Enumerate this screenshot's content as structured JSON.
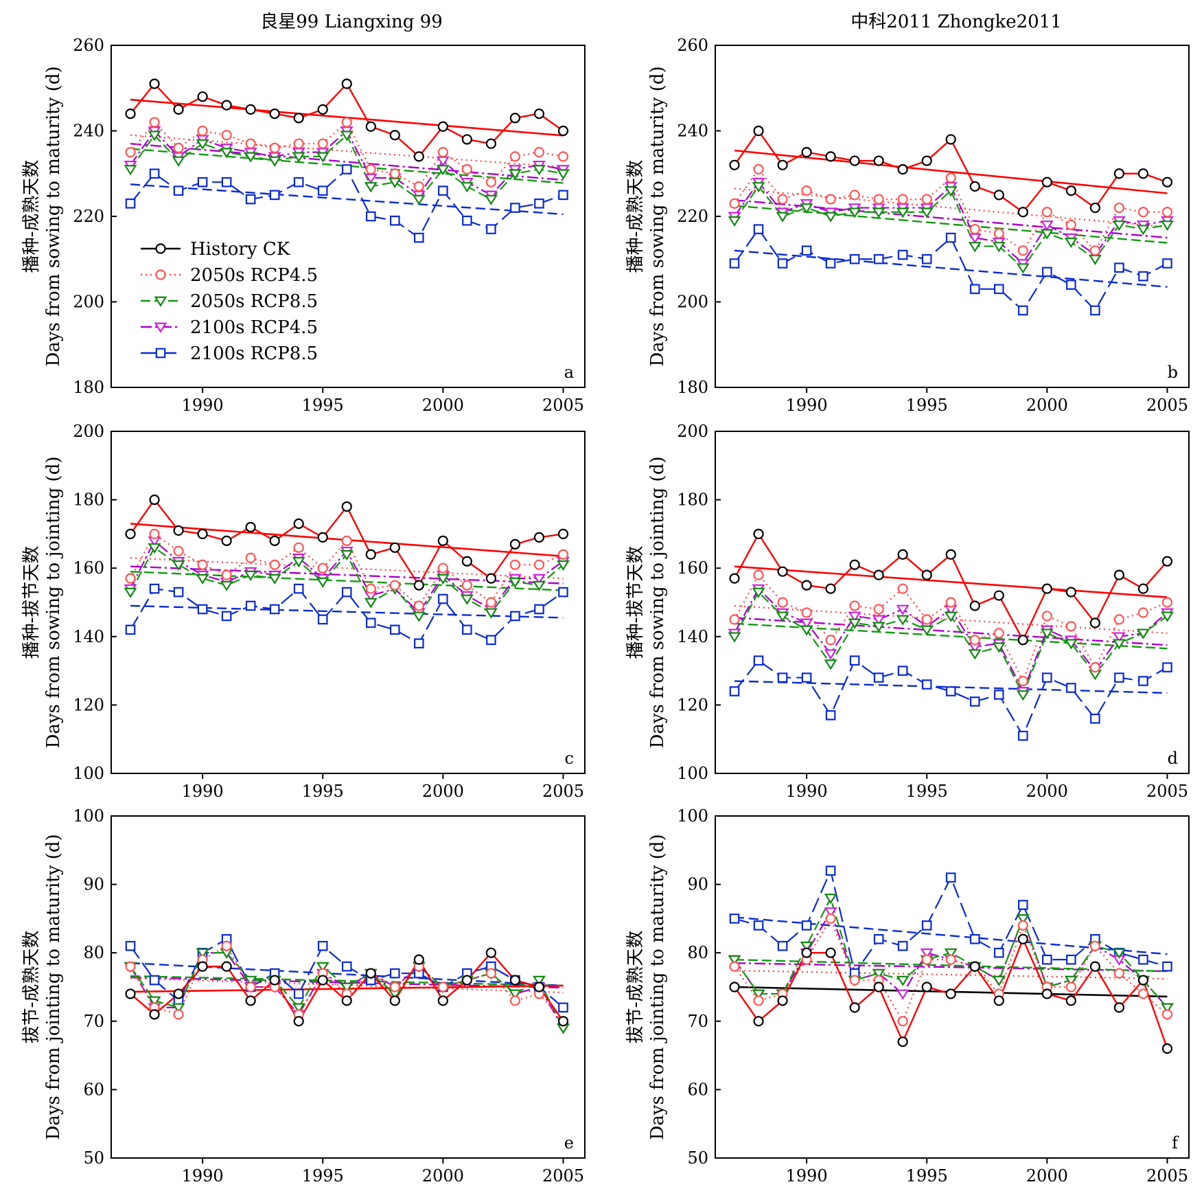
{
  "columns": [
    "良星99 Liangxing 99",
    "中科2011 Zhongke2011"
  ],
  "legend": [
    "History CK",
    "2050s RCP4.5",
    "2050s RCP8.5",
    "2100s RCP4.5",
    "2100s RCP8.5"
  ],
  "colors": {
    "History CK": "#ff0000",
    "2050s RCP4.5": "#ff4040",
    "2050s RCP8.5": "#119911",
    "2100s RCP4.5": "#aa00cc",
    "2100s RCP8.5": "#0a2ad4",
    "marker_ck": "#000000",
    "marker_rcp45_2050": "#ff5555",
    "marker_rcp85_2050": "#118811",
    "marker_rcp45_2100": "#cc22dd",
    "marker_rcp85_2100": "#0a2ad4"
  },
  "chart_data": [
    {
      "type": "line",
      "panel_label": "a",
      "column": 0,
      "ylabel_cn": "播种-成熟天数",
      "ylabel_en": "Days from sowing to maturity (d)",
      "ylim": [
        180,
        260
      ],
      "yticks": [
        180,
        200,
        220,
        240,
        260
      ],
      "xlim": [
        1986.2,
        2005.9
      ],
      "xticks": [
        1990,
        1995,
        2000,
        2005
      ],
      "x": [
        1987,
        1988,
        1989,
        1990,
        1991,
        1992,
        1993,
        1994,
        1995,
        1996,
        1997,
        1998,
        1999,
        2000,
        2001,
        2002,
        2003,
        2004,
        2005
      ],
      "series": [
        {
          "name": "History CK",
          "values": [
            244,
            251,
            245,
            248,
            246,
            245,
            244,
            243,
            245,
            251,
            241,
            239,
            234,
            241,
            238,
            237,
            243,
            244,
            240
          ],
          "trend": [
            247.3,
            238.9
          ]
        },
        {
          "name": "2050s RCP4.5",
          "values": [
            235,
            242,
            236,
            240,
            239,
            237,
            236,
            237,
            237,
            242,
            231,
            230,
            227,
            235,
            231,
            228,
            234,
            235,
            234
          ],
          "trend": [
            239.0,
            231.5
          ]
        },
        {
          "name": "2050s RCP8.5",
          "values": [
            231,
            239,
            233,
            237,
            235,
            234,
            233,
            234,
            234,
            239,
            227,
            228,
            224,
            231,
            227,
            224,
            230,
            231,
            230
          ],
          "trend": [
            235.8,
            227.8
          ]
        },
        {
          "name": "2100s RCP4.5",
          "values": [
            232,
            240,
            234,
            238,
            236,
            235,
            234,
            235,
            235,
            240,
            229,
            229,
            225,
            233,
            228,
            225,
            231,
            232,
            231
          ],
          "trend": [
            237.0,
            228.5
          ]
        },
        {
          "name": "2100s RCP8.5",
          "values": [
            223,
            230,
            226,
            228,
            228,
            224,
            225,
            228,
            226,
            231,
            220,
            219,
            215,
            226,
            219,
            217,
            222,
            223,
            225
          ],
          "trend": [
            227.5,
            220.5
          ]
        }
      ]
    },
    {
      "type": "line",
      "panel_label": "b",
      "column": 1,
      "ylabel_cn": "播种-成熟天数",
      "ylabel_en": "Days from sowing to maturity (d)",
      "ylim": [
        180,
        260
      ],
      "yticks": [
        180,
        200,
        220,
        240,
        260
      ],
      "xlim": [
        1986.2,
        2005.9
      ],
      "xticks": [
        1990,
        1995,
        2000,
        2005
      ],
      "x": [
        1987,
        1988,
        1989,
        1990,
        1991,
        1992,
        1993,
        1994,
        1995,
        1996,
        1997,
        1998,
        1999,
        2000,
        2001,
        2002,
        2003,
        2004,
        2005
      ],
      "series": [
        {
          "name": "History CK",
          "values": [
            232,
            240,
            232,
            235,
            234,
            233,
            233,
            231,
            233,
            238,
            227,
            225,
            221,
            228,
            226,
            222,
            230,
            230,
            228
          ],
          "trend": [
            235.4,
            225.4
          ]
        },
        {
          "name": "2050s RCP4.5",
          "values": [
            223,
            231,
            224,
            226,
            224,
            225,
            224,
            224,
            224,
            229,
            217,
            216,
            212,
            221,
            218,
            212,
            222,
            221,
            221
          ],
          "trend": [
            226.5,
            217.5
          ]
        },
        {
          "name": "2050s RCP8.5",
          "values": [
            219,
            227,
            220,
            222,
            220,
            221,
            221,
            221,
            221,
            226,
            213,
            213,
            208,
            216,
            214,
            210,
            218,
            217,
            218
          ],
          "trend": [
            222.5,
            213.8
          ]
        },
        {
          "name": "2100s RCP4.5",
          "values": [
            220,
            228,
            221,
            223,
            221,
            222,
            222,
            222,
            222,
            227,
            215,
            214,
            209,
            218,
            215,
            211,
            219,
            218,
            219
          ],
          "trend": [
            223.8,
            215.0
          ]
        },
        {
          "name": "2100s RCP8.5",
          "values": [
            209,
            217,
            209,
            212,
            209,
            210,
            210,
            211,
            210,
            215,
            203,
            203,
            198,
            207,
            204,
            198,
            208,
            206,
            209
          ],
          "trend": [
            212.0,
            203.5
          ]
        }
      ]
    },
    {
      "type": "line",
      "panel_label": "c",
      "column": 0,
      "ylabel_cn": "播种-拔节天数",
      "ylabel_en": "Days from sowing to jointing (d)",
      "ylim": [
        100,
        200
      ],
      "yticks": [
        100,
        120,
        140,
        160,
        180,
        200
      ],
      "xlim": [
        1986.2,
        2005.9
      ],
      "xticks": [
        1990,
        1995,
        2000,
        2005
      ],
      "x": [
        1987,
        1988,
        1989,
        1990,
        1991,
        1992,
        1993,
        1994,
        1995,
        1996,
        1997,
        1998,
        1999,
        2000,
        2001,
        2002,
        2003,
        2004,
        2005
      ],
      "series": [
        {
          "name": "History CK",
          "values": [
            170,
            180,
            171,
            170,
            168,
            172,
            168,
            173,
            169,
            178,
            164,
            166,
            155,
            168,
            162,
            157,
            167,
            169,
            170
          ],
          "trend": [
            173.0,
            163.5
          ]
        },
        {
          "name": "2050s RCP4.5",
          "values": [
            157,
            170,
            165,
            161,
            158,
            163,
            161,
            166,
            160,
            168,
            154,
            155,
            149,
            160,
            155,
            150,
            161,
            161,
            164
          ],
          "trend": [
            163.0,
            157.0
          ]
        },
        {
          "name": "2050s RCP8.5",
          "values": [
            153,
            166,
            161,
            157,
            155,
            158,
            157,
            162,
            156,
            164,
            150,
            154,
            146,
            157,
            151,
            147,
            156,
            155,
            161
          ],
          "trend": [
            159.0,
            153.5
          ]
        },
        {
          "name": "2100s RCP4.5",
          "values": [
            154,
            168,
            162,
            158,
            156,
            159,
            158,
            163,
            157,
            165,
            152,
            154,
            147,
            158,
            152,
            148,
            157,
            157,
            162
          ],
          "trend": [
            160.5,
            155.5
          ]
        },
        {
          "name": "2100s RCP8.5",
          "values": [
            142,
            154,
            153,
            148,
            146,
            149,
            148,
            154,
            145,
            153,
            144,
            142,
            138,
            151,
            142,
            139,
            146,
            148,
            153
          ],
          "trend": [
            149.0,
            145.5
          ]
        }
      ]
    },
    {
      "type": "line",
      "panel_label": "d",
      "column": 1,
      "ylabel_cn": "播种-拔节天数",
      "ylabel_en": "Days from sowing to jointing (d)",
      "ylim": [
        100,
        200
      ],
      "yticks": [
        100,
        120,
        140,
        160,
        180,
        200
      ],
      "xlim": [
        1986.2,
        2005.9
      ],
      "xticks": [
        1990,
        1995,
        2000,
        2005
      ],
      "x": [
        1987,
        1988,
        1989,
        1990,
        1991,
        1992,
        1993,
        1994,
        1995,
        1996,
        1997,
        1998,
        1999,
        2000,
        2001,
        2002,
        2003,
        2004,
        2005
      ],
      "series": [
        {
          "name": "History CK",
          "values": [
            157,
            170,
            159,
            155,
            154,
            161,
            158,
            164,
            158,
            164,
            149,
            152,
            139,
            154,
            153,
            144,
            158,
            154,
            162
          ],
          "trend": [
            160.5,
            151.5
          ]
        },
        {
          "name": "2050s RCP4.5",
          "values": [
            145,
            158,
            150,
            147,
            139,
            149,
            148,
            154,
            145,
            150,
            139,
            141,
            127,
            146,
            143,
            131,
            145,
            147,
            150
          ],
          "trend": [
            149.0,
            141.0
          ]
        },
        {
          "name": "2050s RCP8.5",
          "values": [
            140,
            153,
            146,
            142,
            132,
            144,
            143,
            145,
            142,
            146,
            135,
            137,
            123,
            141,
            138,
            129,
            138,
            141,
            146
          ],
          "trend": [
            143.8,
            136.5
          ]
        },
        {
          "name": "2100s RCP4.5",
          "values": [
            141,
            154,
            147,
            144,
            135,
            146,
            145,
            148,
            143,
            148,
            137,
            138,
            124,
            142,
            139,
            130,
            140,
            141,
            147
          ],
          "trend": [
            145.5,
            137.5
          ]
        },
        {
          "name": "2100s RCP8.5",
          "values": [
            124,
            133,
            128,
            128,
            117,
            133,
            128,
            130,
            126,
            124,
            121,
            123,
            111,
            128,
            125,
            116,
            128,
            127,
            131
          ],
          "trend": [
            127.0,
            123.5
          ]
        }
      ]
    },
    {
      "type": "line",
      "panel_label": "e",
      "column": 0,
      "ylabel_cn": "拔节-成熟天数",
      "ylabel_en": "Days from jointing to maturity (d)",
      "ylim": [
        50,
        100
      ],
      "yticks": [
        50,
        60,
        70,
        80,
        90,
        100
      ],
      "xlim": [
        1986.2,
        2005.9
      ],
      "xticks": [
        1990,
        1995,
        2000,
        2005
      ],
      "x": [
        1987,
        1988,
        1989,
        1990,
        1991,
        1992,
        1993,
        1994,
        1995,
        1996,
        1997,
        1998,
        1999,
        2000,
        2001,
        2002,
        2003,
        2004,
        2005
      ],
      "series": [
        {
          "name": "History CK",
          "values": [
            74,
            71,
            74,
            78,
            78,
            73,
            76,
            70,
            76,
            73,
            77,
            73,
            79,
            73,
            76,
            80,
            76,
            75,
            70
          ],
          "trend": [
            74.3,
            75.2
          ]
        },
        {
          "name": "2050s RCP4.5",
          "values": [
            78,
            72,
            71,
            79,
            81,
            75,
            75,
            71,
            77,
            74,
            77,
            75,
            78,
            75,
            76,
            77,
            73,
            74,
            70
          ],
          "trend": [
            76.3,
            74.2
          ]
        },
        {
          "name": "2050s RCP8.5",
          "values": [
            78,
            73,
            72,
            80,
            80,
            76,
            76,
            72,
            78,
            75,
            77,
            74,
            78,
            75,
            76,
            77,
            74,
            76,
            69
          ],
          "trend": [
            76.6,
            75.2
          ]
        },
        {
          "name": "2100s RCP4.5",
          "values": [
            78,
            72,
            72,
            80,
            80,
            75,
            75,
            71,
            77,
            75,
            77,
            75,
            78,
            75,
            76,
            77,
            74,
            75,
            69
          ],
          "trend": [
            76.4,
            74.9
          ]
        },
        {
          "name": "2100s RCP8.5",
          "values": [
            81,
            76,
            73,
            80,
            82,
            75,
            77,
            74,
            81,
            78,
            76,
            77,
            77,
            75,
            77,
            78,
            76,
            75,
            72
          ],
          "trend": [
            78.5,
            75.2
          ]
        }
      ]
    },
    {
      "type": "line",
      "panel_label": "f",
      "column": 1,
      "ylabel_cn": "拔节-成熟天数",
      "ylabel_en": "Days from jointing to maturity (d)",
      "ylim": [
        50,
        100
      ],
      "yticks": [
        50,
        60,
        70,
        80,
        90,
        100
      ],
      "xlim": [
        1986.2,
        2005.9
      ],
      "xticks": [
        1990,
        1995,
        2000,
        2005
      ],
      "x": [
        1987,
        1988,
        1989,
        1990,
        1991,
        1992,
        1993,
        1994,
        1995,
        1996,
        1997,
        1998,
        1999,
        2000,
        2001,
        2002,
        2003,
        2004,
        2005
      ],
      "series": [
        {
          "name": "History CK",
          "values": [
            75,
            70,
            73,
            80,
            80,
            72,
            75,
            67,
            75,
            74,
            78,
            73,
            82,
            74,
            73,
            78,
            72,
            76,
            66
          ],
          "trend": [
            75.0,
            73.6
          ]
        },
        {
          "name": "2050s RCP4.5",
          "values": [
            78,
            73,
            74,
            79,
            85,
            76,
            76,
            70,
            79,
            79,
            78,
            74,
            84,
            75,
            75,
            81,
            77,
            74,
            71
          ],
          "trend": [
            77.4,
            76.2
          ]
        },
        {
          "name": "2050s RCP8.5",
          "values": [
            79,
            74,
            74,
            81,
            88,
            76,
            77,
            76,
            79,
            80,
            78,
            76,
            85,
            75,
            76,
            81,
            80,
            76,
            72
          ],
          "trend": [
            79.0,
            77.3
          ]
        },
        {
          "name": "2100s RCP4.5",
          "values": [
            79,
            74,
            74,
            80,
            86,
            76,
            77,
            74,
            80,
            79,
            78,
            76,
            85,
            75,
            76,
            81,
            79,
            76,
            72
          ],
          "trend": [
            78.5,
            77.3
          ]
        },
        {
          "name": "2100s RCP8.5",
          "values": [
            85,
            84,
            81,
            84,
            92,
            77,
            82,
            81,
            84,
            91,
            82,
            80,
            87,
            79,
            79,
            82,
            80,
            79,
            78
          ],
          "trend": [
            85.2,
            79.8
          ]
        }
      ]
    }
  ]
}
